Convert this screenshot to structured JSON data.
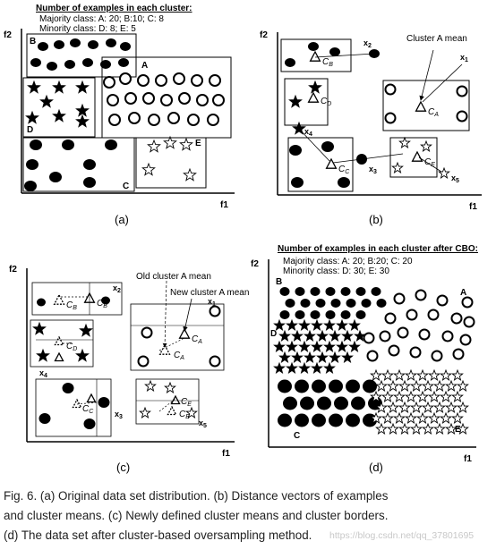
{
  "panels": {
    "a": {
      "header": "Number of examples in each cluster:",
      "majority": "Majority class: A: 20; B:10; C: 8",
      "minority": "Minority class: D: 8; E: 5",
      "cluster_labels": [
        "A",
        "B",
        "C",
        "D",
        "E"
      ],
      "x_axis": "f1",
      "y_axis": "f2",
      "label": "(a)"
    },
    "b": {
      "annotation": "Cluster A mean",
      "x_labels": [
        "x2",
        "x1",
        "x4",
        "x3",
        "x5"
      ],
      "means": [
        "CB",
        "CD",
        "CA",
        "CC",
        "CE"
      ],
      "x_axis": "f1",
      "y_axis": "f2",
      "label": "(b)"
    },
    "c": {
      "old_mean": "Old cluster A mean",
      "new_mean": "New cluster A mean",
      "x_labels": [
        "x2",
        "x1",
        "x4",
        "x3",
        "x5"
      ],
      "means": [
        "CB",
        "CD",
        "CA",
        "CC",
        "CE"
      ],
      "x_axis": "f1",
      "y_axis": "f2",
      "label": "(c)"
    },
    "d": {
      "header": "Number of examples in each cluster after CBO:",
      "majority": "Majority class: A: 20; B:20; C: 20",
      "minority": "Minority class: D: 30; E: 30",
      "cluster_labels": [
        "A",
        "B",
        "C",
        "D",
        "E"
      ],
      "x_axis": "f1",
      "y_axis": "f2",
      "label": "(d)"
    }
  },
  "caption": {
    "line1": "Fig. 6. (a) Original data set distribution. (b) Distance vectors of examples",
    "line2": "and cluster means. (c) Newly defined cluster means and cluster borders.",
    "line3": "(d) The data set after cluster-based oversampling method."
  },
  "watermark": "https://blog.csdn.net/qq_37801695"
}
